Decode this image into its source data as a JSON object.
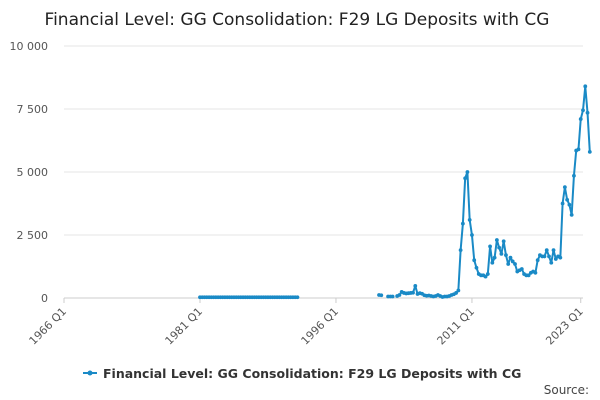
{
  "chart_data": {
    "type": "line",
    "title": "Financial Level: GG Consolidation: F29 LG Deposits with CG",
    "xlabel": "",
    "ylabel": "",
    "y_ticks": [
      0,
      2500,
      5000,
      7500,
      10000
    ],
    "y_tick_labels": [
      "0",
      "2 500",
      "5 000",
      "7 500",
      "10 000"
    ],
    "ylim": [
      0,
      10000
    ],
    "x_ticks": [
      1966,
      1981,
      1996,
      2011,
      2023
    ],
    "x_tick_labels": [
      "1966 Q1",
      "1981 Q1",
      "1996 Q1",
      "2011 Q1",
      "2023 Q1"
    ],
    "xlim": [
      1966,
      2023.25
    ],
    "grid": true,
    "legend_position": "bottom",
    "color": "#1a8ac6",
    "source_label": "Source:",
    "series": [
      {
        "name": "Financial Level: GG Consolidation: F29 LG Deposits with CG",
        "segments": [
          [
            [
              1981.0,
              30
            ],
            [
              1981.25,
              30
            ],
            [
              1981.5,
              30
            ],
            [
              1981.75,
              30
            ],
            [
              1982.0,
              30
            ],
            [
              1982.25,
              30
            ],
            [
              1982.5,
              30
            ],
            [
              1982.75,
              30
            ],
            [
              1983.0,
              30
            ],
            [
              1983.25,
              30
            ],
            [
              1983.5,
              30
            ],
            [
              1983.75,
              30
            ],
            [
              1984.0,
              30
            ],
            [
              1984.25,
              30
            ],
            [
              1984.5,
              30
            ],
            [
              1984.75,
              30
            ],
            [
              1985.0,
              30
            ],
            [
              1985.25,
              30
            ],
            [
              1985.5,
              30
            ],
            [
              1985.75,
              30
            ],
            [
              1986.0,
              30
            ],
            [
              1986.25,
              30
            ],
            [
              1986.5,
              30
            ],
            [
              1986.75,
              30
            ],
            [
              1987.0,
              30
            ],
            [
              1987.25,
              30
            ],
            [
              1987.5,
              30
            ],
            [
              1987.75,
              30
            ],
            [
              1988.0,
              30
            ],
            [
              1988.25,
              30
            ],
            [
              1988.5,
              30
            ],
            [
              1988.75,
              30
            ],
            [
              1989.0,
              30
            ],
            [
              1989.25,
              30
            ],
            [
              1989.5,
              30
            ],
            [
              1989.75,
              30
            ],
            [
              1990.0,
              30
            ],
            [
              1990.25,
              30
            ],
            [
              1990.5,
              30
            ],
            [
              1990.75,
              30
            ],
            [
              1991.0,
              30
            ],
            [
              1991.25,
              30
            ],
            [
              1991.5,
              30
            ],
            [
              1991.75,
              30
            ]
          ],
          [
            [
              2000.75,
              120
            ],
            [
              2001.0,
              110
            ]
          ],
          [
            [
              2001.75,
              60
            ],
            [
              2002.0,
              60
            ],
            [
              2002.25,
              60
            ]
          ],
          [
            [
              2002.75,
              80
            ],
            [
              2003.0,
              120
            ],
            [
              2003.25,
              240
            ],
            [
              2003.5,
              200
            ],
            [
              2003.75,
              180
            ],
            [
              2004.0,
              190
            ],
            [
              2004.25,
              200
            ],
            [
              2004.5,
              210
            ],
            [
              2004.75,
              480
            ],
            [
              2005.0,
              160
            ],
            [
              2005.25,
              190
            ],
            [
              2005.5,
              170
            ],
            [
              2005.75,
              110
            ],
            [
              2006.0,
              90
            ],
            [
              2006.25,
              100
            ],
            [
              2006.5,
              80
            ],
            [
              2006.75,
              60
            ],
            [
              2007.0,
              80
            ],
            [
              2007.25,
              120
            ],
            [
              2007.5,
              80
            ],
            [
              2007.75,
              40
            ],
            [
              2008.0,
              60
            ],
            [
              2008.25,
              60
            ],
            [
              2008.5,
              80
            ],
            [
              2008.75,
              120
            ],
            [
              2009.0,
              150
            ],
            [
              2009.25,
              200
            ],
            [
              2009.5,
              300
            ],
            [
              2009.75,
              1900
            ],
            [
              2010.0,
              2950
            ],
            [
              2010.25,
              4750
            ],
            [
              2010.5,
              5000
            ],
            [
              2010.75,
              3100
            ],
            [
              2011.0,
              2500
            ],
            [
              2011.25,
              1500
            ],
            [
              2011.5,
              1200
            ],
            [
              2011.75,
              950
            ],
            [
              2012.0,
              900
            ],
            [
              2012.25,
              900
            ],
            [
              2012.5,
              850
            ],
            [
              2012.75,
              950
            ],
            [
              2013.0,
              2050
            ],
            [
              2013.25,
              1400
            ],
            [
              2013.5,
              1600
            ],
            [
              2013.75,
              2300
            ],
            [
              2014.0,
              2000
            ],
            [
              2014.25,
              1750
            ],
            [
              2014.5,
              2250
            ],
            [
              2014.75,
              1700
            ],
            [
              2015.0,
              1350
            ],
            [
              2015.25,
              1600
            ],
            [
              2015.5,
              1450
            ],
            [
              2015.75,
              1350
            ],
            [
              2016.0,
              1050
            ],
            [
              2016.25,
              1100
            ],
            [
              2016.5,
              1150
            ],
            [
              2016.75,
              950
            ],
            [
              2017.0,
              900
            ],
            [
              2017.25,
              900
            ],
            [
              2017.5,
              1000
            ],
            [
              2017.75,
              1050
            ],
            [
              2018.0,
              1000
            ],
            [
              2018.25,
              1500
            ],
            [
              2018.5,
              1700
            ],
            [
              2018.75,
              1650
            ],
            [
              2019.0,
              1650
            ],
            [
              2019.25,
              1900
            ],
            [
              2019.5,
              1650
            ],
            [
              2019.75,
              1400
            ],
            [
              2020.0,
              1900
            ],
            [
              2020.25,
              1550
            ],
            [
              2020.5,
              1650
            ],
            [
              2020.75,
              1600
            ],
            [
              2021.0,
              3750
            ],
            [
              2021.25,
              4400
            ],
            [
              2021.5,
              3900
            ],
            [
              2021.75,
              3700
            ],
            [
              2022.0,
              3300
            ],
            [
              2022.25,
              4850
            ],
            [
              2022.5,
              5850
            ],
            [
              2022.75,
              5900
            ],
            [
              2023.0,
              7100
            ],
            [
              2023.25,
              7450
            ],
            [
              2023.5,
              8400
            ],
            [
              2023.75,
              7350
            ],
            [
              2024.0,
              5800
            ]
          ]
        ]
      }
    ]
  }
}
